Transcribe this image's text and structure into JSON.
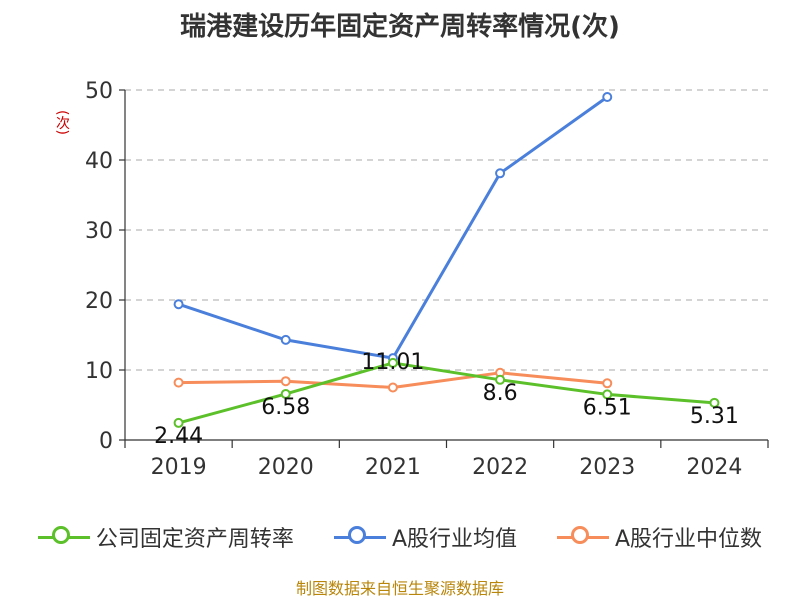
{
  "chart_data": {
    "type": "line",
    "title": "瑞港建设历年固定资产周转率情况(次)",
    "ylabel": "(次)",
    "xlabel": "",
    "categories": [
      "2019",
      "2020",
      "2021",
      "2022",
      "2023",
      "2024"
    ],
    "ylim": [
      0,
      50
    ],
    "yticks": [
      0,
      10,
      20,
      30,
      40,
      50
    ],
    "grid": true,
    "legend": "bottom",
    "series": [
      {
        "name": "公司固定资产周转率",
        "color": "#5cc02a",
        "values": [
          2.44,
          6.58,
          11.01,
          8.6,
          6.51,
          5.31
        ],
        "labels": [
          "2.44",
          "6.58",
          "11.01",
          "8.6",
          "6.51",
          "5.31"
        ]
      },
      {
        "name": "A股行业均值",
        "color": "#4a7fdb",
        "values": [
          19.4,
          14.3,
          11.7,
          38.1,
          49.0,
          null
        ]
      },
      {
        "name": "A股行业中位数",
        "color": "#f78d5a",
        "values": [
          8.2,
          8.4,
          7.5,
          9.6,
          8.1,
          null
        ]
      }
    ]
  },
  "source": "制图数据来自恒生聚源数据库"
}
